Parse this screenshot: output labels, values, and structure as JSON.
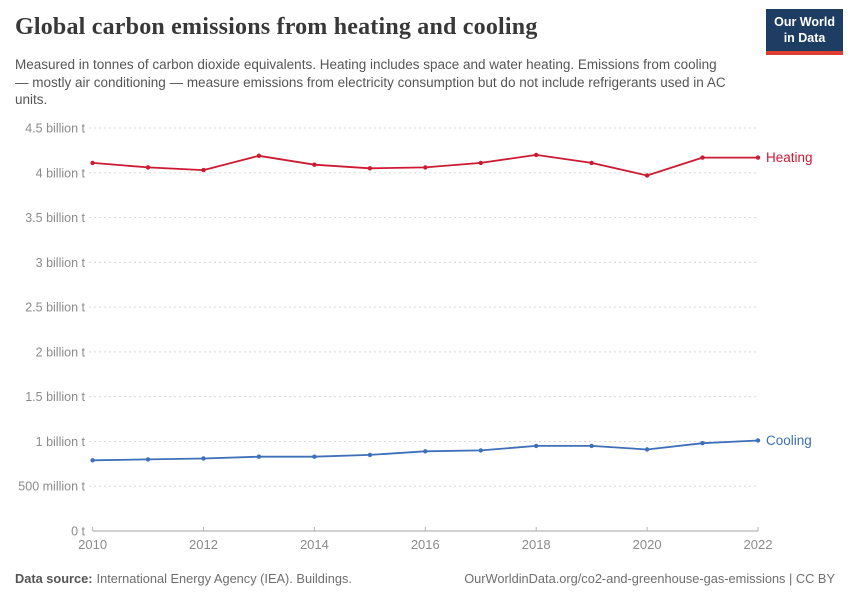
{
  "header": {
    "title": "Global carbon emissions from heating and cooling",
    "subtitle": "Measured in tonnes of carbon dioxide equivalents. Heating includes space and water heating. Emissions from cooling — mostly air conditioning — measure emissions from electricity consumption but do not include refrigerants used in AC units.",
    "logo": {
      "line1": "Our World",
      "line2": "in Data",
      "bg_color": "#1d3d63",
      "bar_color": "#dc3e32"
    }
  },
  "chart_data": {
    "type": "line",
    "x": [
      2010,
      2011,
      2012,
      2013,
      2014,
      2015,
      2016,
      2017,
      2018,
      2019,
      2020,
      2021,
      2022
    ],
    "series": [
      {
        "name": "Heating",
        "color": "#cd1a33",
        "values": [
          4.11,
          4.06,
          4.03,
          4.19,
          4.09,
          4.05,
          4.06,
          4.11,
          4.2,
          4.11,
          3.97,
          4.17,
          4.17
        ]
      },
      {
        "name": "Cooling",
        "color": "#3d70b8",
        "values": [
          0.79,
          0.8,
          0.81,
          0.83,
          0.83,
          0.85,
          0.89,
          0.9,
          0.95,
          0.95,
          0.91,
          0.98,
          1.01
        ]
      }
    ],
    "y_ticks": [
      {
        "value": 0,
        "label": "0 t"
      },
      {
        "value": 0.5,
        "label": "500 million t"
      },
      {
        "value": 1,
        "label": "1 billion t"
      },
      {
        "value": 1.5,
        "label": "1.5 billion t"
      },
      {
        "value": 2,
        "label": "2 billion t"
      },
      {
        "value": 2.5,
        "label": "2.5 billion t"
      },
      {
        "value": 3,
        "label": "3 billion t"
      },
      {
        "value": 3.5,
        "label": "3.5 billion t"
      },
      {
        "value": 4,
        "label": "4 billion t"
      },
      {
        "value": 4.5,
        "label": "4.5 billion t"
      }
    ],
    "x_ticks": [
      2010,
      2012,
      2014,
      2016,
      2018,
      2020,
      2022
    ],
    "ylim": [
      0,
      4.5
    ],
    "xlim": [
      2010,
      2022
    ],
    "grid": "dashed-horizontal",
    "legend_position": "line-end-labels",
    "axis_colors": {
      "grid": "#dadada",
      "axis_line": "#a3a3a3",
      "tick_text": "#8b8b8b"
    }
  },
  "footer": {
    "source_label": "Data source:",
    "source_text": "International Energy Agency (IEA). Buildings.",
    "citation": "OurWorldinData.org/co2-and-greenhouse-gas-emissions | CC BY"
  }
}
